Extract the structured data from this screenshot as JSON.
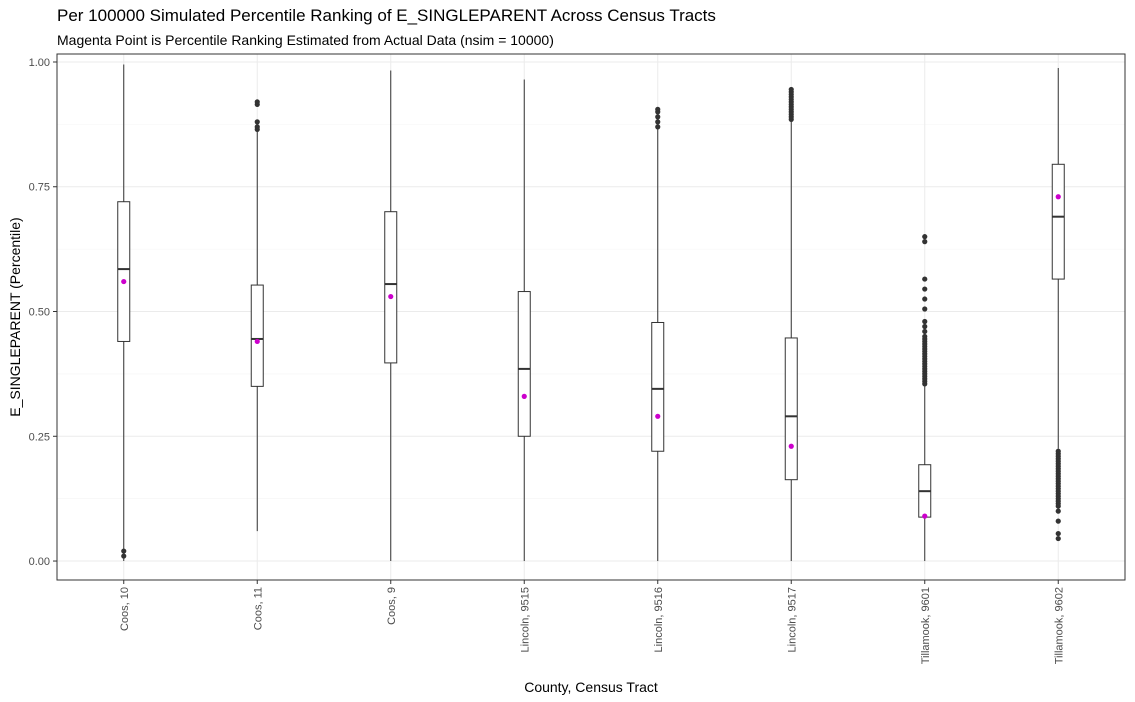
{
  "chart_data": {
    "type": "boxplot",
    "title": "Per 100000 Simulated Percentile Ranking of E_SINGLEPARENT Across Census Tracts",
    "subtitle": "Magenta Point is Percentile Ranking Estimated from Actual Data (nsim = 10000)",
    "xlabel": "County, Census Tract",
    "ylabel": "E_SINGLEPARENT (Percentile)",
    "ylim": [
      -0.038,
      1.016
    ],
    "yticks": [
      "0.00",
      "0.25",
      "0.50",
      "0.75",
      "1.00"
    ],
    "ytick_values": [
      0,
      0.25,
      0.5,
      0.75,
      1.0
    ],
    "grid": true,
    "colors": {
      "box": "#333333",
      "outlier": "#333333",
      "actual_point": "#CC00CC",
      "grid": "#EBEBEB",
      "panel_border": "#333333"
    },
    "categories": [
      "Coos, 10",
      "Coos, 11",
      "Coos, 9",
      "Lincoln, 9515",
      "Lincoln, 9516",
      "Lincoln, 9517",
      "Tillamook, 9601",
      "Tillamook, 9602"
    ],
    "boxes": [
      {
        "whisker_low": 0.0,
        "q1": 0.44,
        "median": 0.585,
        "q3": 0.72,
        "whisker_high": 0.995,
        "actual": 0.56,
        "outliers": [
          0.02,
          0.01
        ]
      },
      {
        "whisker_low": 0.06,
        "q1": 0.35,
        "median": 0.445,
        "q3": 0.553,
        "whisker_high": 0.86,
        "actual": 0.44,
        "outliers": [
          0.865,
          0.87,
          0.88,
          0.915,
          0.92
        ]
      },
      {
        "whisker_low": 0.0,
        "q1": 0.397,
        "median": 0.555,
        "q3": 0.7,
        "whisker_high": 0.983,
        "actual": 0.53,
        "outliers": []
      },
      {
        "whisker_low": 0.0,
        "q1": 0.25,
        "median": 0.385,
        "q3": 0.54,
        "whisker_high": 0.965,
        "actual": 0.33,
        "outliers": []
      },
      {
        "whisker_low": 0.0,
        "q1": 0.22,
        "median": 0.345,
        "q3": 0.478,
        "whisker_high": 0.865,
        "actual": 0.29,
        "outliers": [
          0.87,
          0.88,
          0.89,
          0.9,
          0.905
        ]
      },
      {
        "whisker_low": 0.0,
        "q1": 0.163,
        "median": 0.29,
        "q3": 0.447,
        "whisker_high": 0.88,
        "actual": 0.23,
        "outliers": [
          0.885,
          0.89,
          0.895,
          0.9,
          0.905,
          0.91,
          0.915,
          0.92,
          0.925,
          0.93,
          0.935,
          0.94,
          0.945
        ]
      },
      {
        "whisker_low": 0.0,
        "q1": 0.088,
        "median": 0.14,
        "q3": 0.193,
        "whisker_high": 0.35,
        "actual": 0.09,
        "outliers": [
          0.355,
          0.36,
          0.365,
          0.37,
          0.375,
          0.38,
          0.385,
          0.39,
          0.395,
          0.4,
          0.405,
          0.41,
          0.415,
          0.42,
          0.425,
          0.43,
          0.435,
          0.44,
          0.445,
          0.45,
          0.46,
          0.47,
          0.48,
          0.505,
          0.525,
          0.545,
          0.565,
          0.64,
          0.65
        ]
      },
      {
        "whisker_low": 0.225,
        "q1": 0.565,
        "median": 0.69,
        "q3": 0.795,
        "whisker_high": 0.988,
        "actual": 0.73,
        "outliers": [
          0.045,
          0.055,
          0.08,
          0.1,
          0.11,
          0.115,
          0.12,
          0.125,
          0.13,
          0.135,
          0.14,
          0.145,
          0.15,
          0.155,
          0.16,
          0.165,
          0.17,
          0.175,
          0.18,
          0.185,
          0.19,
          0.195,
          0.2,
          0.205,
          0.21,
          0.215,
          0.22
        ]
      }
    ]
  }
}
